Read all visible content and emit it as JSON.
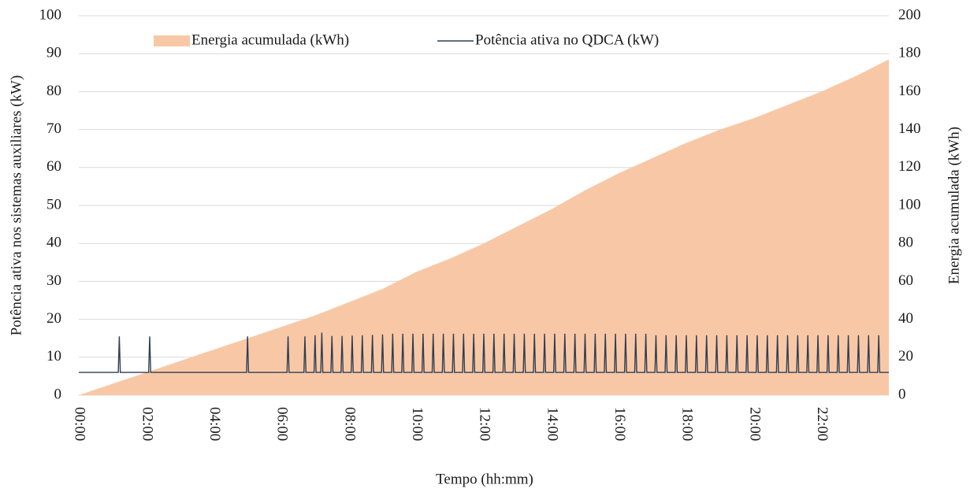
{
  "chart_data": {
    "type": "area-line",
    "x_label": "Tempo (hh:mm)",
    "y_label": "Potência ativa nos sistemas auxiliares (kW)",
    "y2_label": "Energia acumulada (kWh)",
    "xlim": [
      0,
      24
    ],
    "xticks": [
      {
        "value": 0,
        "label": "00:00"
      },
      {
        "value": 2,
        "label": "02:00"
      },
      {
        "value": 4,
        "label": "04:00"
      },
      {
        "value": 6,
        "label": "06:00"
      },
      {
        "value": 8,
        "label": "08:00"
      },
      {
        "value": 10,
        "label": "10:00"
      },
      {
        "value": 12,
        "label": "12:00"
      },
      {
        "value": 14,
        "label": "14:00"
      },
      {
        "value": 16,
        "label": "16:00"
      },
      {
        "value": 18,
        "label": "18:00"
      },
      {
        "value": 20,
        "label": "20:00"
      },
      {
        "value": 22,
        "label": "22:00"
      }
    ],
    "ylim": [
      0,
      100
    ],
    "yticks": [
      0,
      10,
      20,
      30,
      40,
      50,
      60,
      70,
      80,
      90,
      100
    ],
    "y2lim": [
      0,
      200
    ],
    "y2ticks": [
      0,
      20,
      40,
      60,
      80,
      100,
      120,
      140,
      160,
      180,
      200
    ],
    "grid": true,
    "legend": "top",
    "series": [
      {
        "name": "Energia acumulada (kWh)",
        "type": "area",
        "axis": "y2",
        "color": "#f8c8a6",
        "x": [
          0,
          1,
          2,
          3,
          4,
          5,
          6,
          7,
          8,
          9,
          10,
          11,
          12,
          13,
          14,
          15,
          16,
          17,
          18,
          19,
          20,
          21,
          22,
          23,
          24
        ],
        "values": [
          0,
          6,
          12,
          18,
          24,
          30,
          36,
          42,
          49,
          56,
          65,
          72,
          80,
          89,
          98,
          108,
          117,
          125,
          133,
          140,
          146,
          153,
          160,
          168,
          177
        ]
      },
      {
        "name": "Potência ativa no QDCA (kW)",
        "type": "line",
        "axis": "y",
        "color": "#2e3e55",
        "x": [
          0,
          1.17,
          1.2,
          1.23,
          2.07,
          2.1,
          2.13,
          4.97,
          5,
          5.03,
          6.17,
          6.2,
          6.23,
          6.67,
          6.7,
          6.73,
          6.97,
          7,
          7.03,
          7.17,
          7.2,
          7.23,
          7.47,
          7.5,
          7.53,
          7.77,
          7.8,
          7.83,
          8.07,
          8.1,
          8.13,
          8.37,
          8.4,
          8.43,
          8.67,
          8.7,
          8.73,
          8.97,
          9,
          9.03,
          9.27,
          9.3,
          9.33,
          9.57,
          9.6,
          9.63,
          9.87,
          9.9,
          9.93,
          10.17,
          10.2,
          10.23,
          10.47,
          10.5,
          10.53,
          10.77,
          10.8,
          10.83,
          11.07,
          11.1,
          11.13,
          11.37,
          11.4,
          11.43,
          11.67,
          11.7,
          11.73,
          11.97,
          12,
          12.03,
          12.27,
          12.3,
          12.33,
          12.57,
          12.6,
          12.63,
          12.87,
          12.9,
          12.93,
          13.17,
          13.2,
          13.23,
          13.47,
          13.5,
          13.53,
          13.77,
          13.8,
          13.83,
          14.07,
          14.1,
          14.13,
          14.37,
          14.4,
          14.43,
          14.67,
          14.7,
          14.73,
          14.97,
          15,
          15.03,
          15.27,
          15.3,
          15.33,
          15.57,
          15.6,
          15.63,
          15.87,
          15.9,
          15.93,
          16.17,
          16.2,
          16.23,
          16.47,
          16.5,
          16.53,
          16.77,
          16.8,
          16.83,
          17.07,
          17.1,
          17.13,
          17.37,
          17.4,
          17.43,
          17.67,
          17.7,
          17.73,
          17.97,
          18,
          18.03,
          18.27,
          18.3,
          18.33,
          18.57,
          18.6,
          18.63,
          18.87,
          18.9,
          18.93,
          19.17,
          19.2,
          19.23,
          19.47,
          19.5,
          19.53,
          19.77,
          19.8,
          19.83,
          20.07,
          20.1,
          20.13,
          20.37,
          20.4,
          20.43,
          20.67,
          20.7,
          20.73,
          20.97,
          21,
          21.03,
          21.27,
          21.3,
          21.33,
          21.57,
          21.6,
          21.63,
          21.87,
          21.9,
          21.93,
          22.17,
          22.2,
          22.23,
          22.47,
          22.5,
          22.53,
          22.77,
          22.8,
          22.83,
          23.07,
          23.1,
          23.13,
          23.37,
          23.4,
          23.43,
          23.67,
          23.7,
          23.73,
          24
        ],
        "values": [
          6,
          6,
          15.5,
          6,
          6,
          15.5,
          6,
          6,
          15.5,
          6,
          6,
          15.5,
          6,
          6,
          15.5,
          6,
          6,
          15.8,
          6,
          6,
          16.5,
          6,
          6,
          15.6,
          6,
          6,
          15.6,
          6,
          6,
          15.7,
          6,
          6,
          15.8,
          6,
          6,
          15.9,
          6,
          6,
          16,
          6,
          6,
          16.2,
          6,
          6,
          16.2,
          6,
          6,
          16.2,
          6,
          6,
          16.2,
          6,
          6,
          16.2,
          6,
          6,
          16.2,
          6,
          6,
          16.2,
          6,
          6,
          16.2,
          6,
          6,
          16.2,
          6,
          6,
          16.2,
          6,
          6,
          16.2,
          6,
          6,
          16.2,
          6,
          6,
          16.2,
          6,
          6,
          16.2,
          6,
          6,
          16.2,
          6,
          6,
          16.2,
          6,
          6,
          16.2,
          6,
          6,
          16.2,
          6,
          6,
          16.2,
          6,
          6,
          16.2,
          6,
          6,
          16.2,
          6,
          6,
          16.2,
          6,
          6,
          16.2,
          6,
          6,
          16.2,
          6,
          6,
          16.2,
          6,
          6,
          16.2,
          6,
          6,
          15.8,
          6,
          6,
          15.8,
          6,
          6,
          15.8,
          6,
          6,
          15.8,
          6,
          6,
          15.8,
          6,
          6,
          15.8,
          6,
          6,
          15.8,
          6,
          6,
          15.8,
          6,
          6,
          15.8,
          6,
          6,
          15.8,
          6,
          6,
          15.8,
          6,
          6,
          15.8,
          6,
          6,
          15.8,
          6,
          6,
          15.8,
          6,
          6,
          15.8,
          6,
          6,
          15.8,
          6,
          6,
          15.8,
          6,
          6,
          15.8,
          6,
          6,
          15.8,
          6,
          6,
          15.8,
          6,
          6,
          15.8,
          6,
          6,
          15.8,
          6,
          6,
          15.8,
          6,
          6
        ]
      }
    ]
  }
}
